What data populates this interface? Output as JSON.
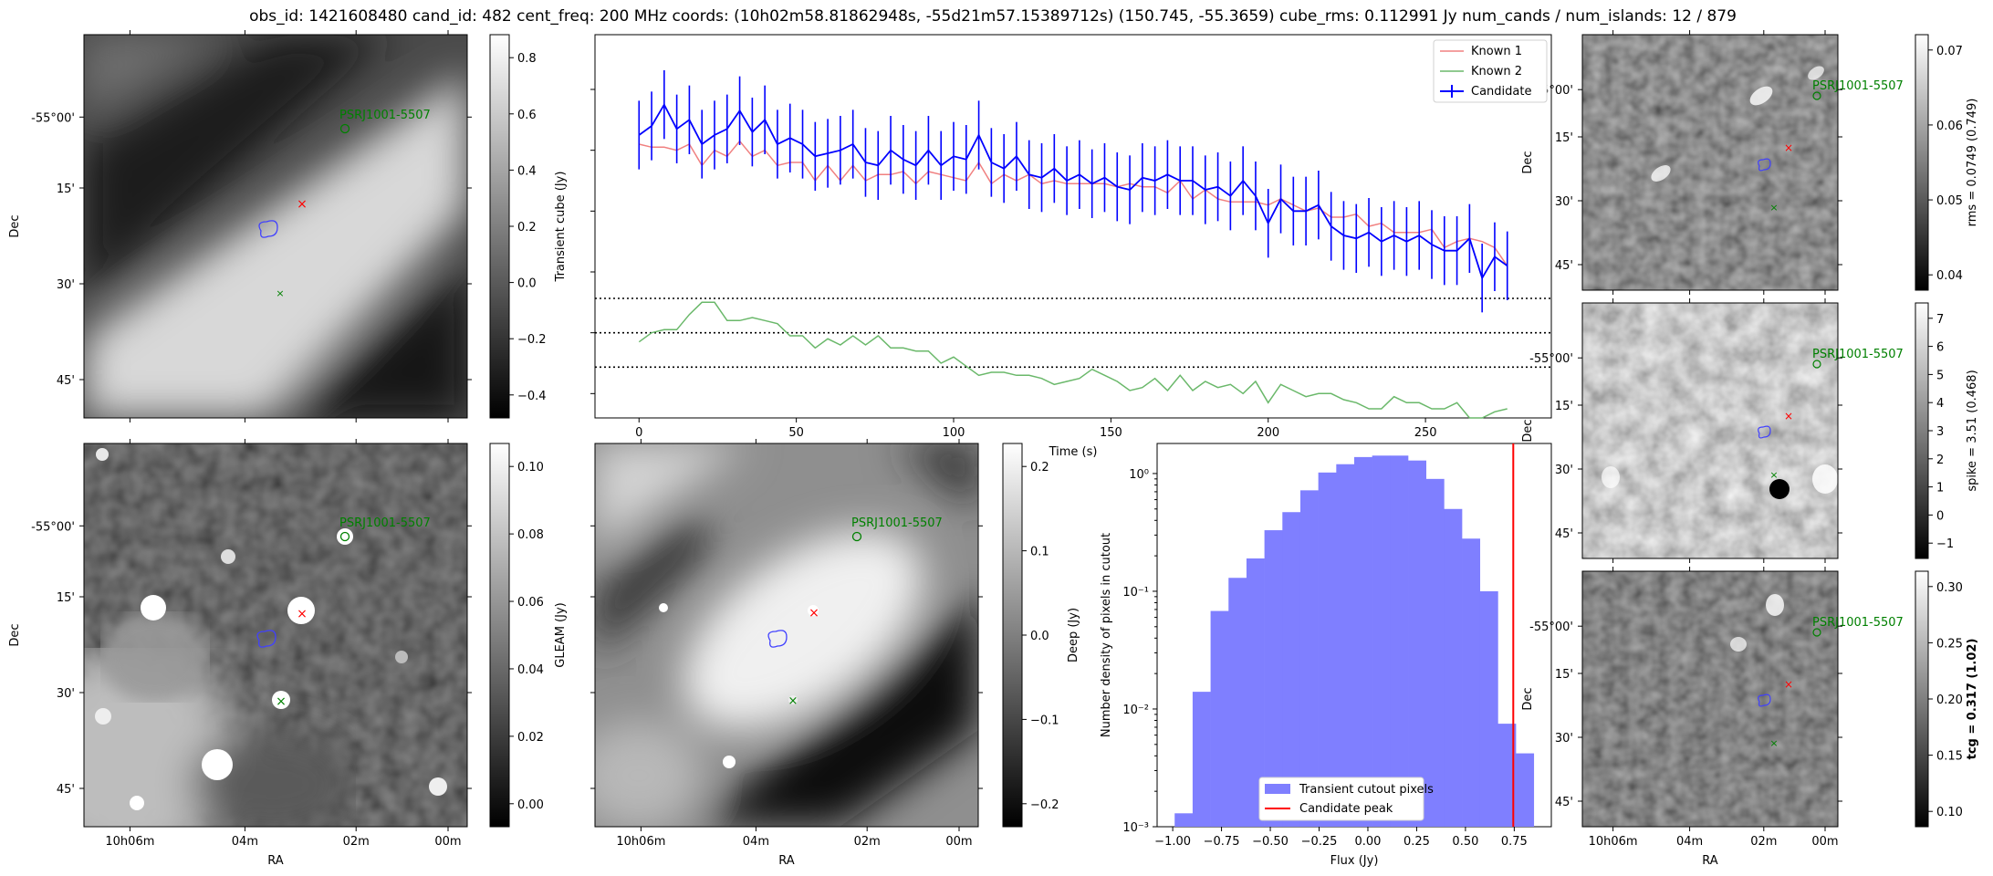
{
  "title": "obs_id: 1421608480 cand_id: 482 cent_freq: 200 MHz coords: (10h02m58.81862948s, -55d21m57.15389712s) (150.745, -55.3659) cube_rms: 0.112991 Jy num_cands / num_islands: 12 / 879",
  "colors": {
    "known1": "#f08080",
    "known2": "#6ab86a",
    "candidate": "#0000ff",
    "peak": "#ff0000",
    "hist": "#7f7fff",
    "psr": "#008000"
  },
  "images": [
    {
      "id": "transient",
      "cbar_label": "Transient cube (Jy)",
      "cbar_ticks": [
        "0.8",
        "0.6",
        "0.4",
        "0.2",
        "0.0",
        "−0.2",
        "−0.4"
      ],
      "dec_ticks": [
        "-55°00'",
        "15'",
        "30'",
        "45'"
      ],
      "ra_ticks": [],
      "ylabel": "Dec",
      "xlabel": "",
      "psr_label": "PSRJ1001-5507"
    },
    {
      "id": "gleam",
      "cbar_label": "GLEAM (Jy)",
      "cbar_ticks": [
        "0.10",
        "0.08",
        "0.06",
        "0.04",
        "0.02",
        "0.00"
      ],
      "dec_ticks": [
        "-55°00'",
        "15'",
        "30'",
        "45'"
      ],
      "ra_ticks": [
        "10h06m",
        "04m",
        "02m",
        "00m"
      ],
      "ylabel": "Dec",
      "xlabel": "RA",
      "psr_label": "PSRJ1001-5507"
    },
    {
      "id": "deep",
      "cbar_label": "Deep (Jy)",
      "cbar_ticks": [
        "0.2",
        "0.1",
        "0.0",
        "−0.1",
        "−0.2"
      ],
      "dec_ticks": [],
      "ra_ticks": [
        "10h06m",
        "04m",
        "02m",
        "00m"
      ],
      "ylabel": "",
      "xlabel": "RA",
      "psr_label": "PSRJ1001-5507"
    },
    {
      "id": "rms",
      "cbar_label": "rms = 0.0749 (0.749)",
      "cbar_ticks": [
        "0.07",
        "0.06",
        "0.05",
        "0.04"
      ],
      "dec_ticks": [
        "-55°00'",
        "15'",
        "30'",
        "45'"
      ],
      "ra_ticks": [],
      "ylabel": "Dec",
      "xlabel": "",
      "psr_label": "PSRJ1001-5507"
    },
    {
      "id": "spike",
      "cbar_label": "spike = 3.51 (0.468)",
      "cbar_ticks": [
        "7",
        "6",
        "5",
        "4",
        "3",
        "2",
        "1",
        "0",
        "−1"
      ],
      "dec_ticks": [
        "-55°00'",
        "15'",
        "30'",
        "45'"
      ],
      "ra_ticks": [],
      "ylabel": "Dec",
      "xlabel": "",
      "psr_label": "PSRJ1001-5507"
    },
    {
      "id": "tcg",
      "cbar_label": "tcg = 0.317 (1.02)",
      "cbar_ticks": [
        "0.30",
        "0.25",
        "0.20",
        "0.15",
        "0.10"
      ],
      "dec_ticks": [
        "-55°00'",
        "15'",
        "30'",
        "45'"
      ],
      "ra_ticks": [
        "10h06m",
        "04m",
        "02m",
        "00m"
      ],
      "ylabel": "Dec",
      "xlabel": "RA",
      "psr_label": "PSRJ1001-5507"
    }
  ],
  "chart_data": [
    {
      "type": "line",
      "title": "",
      "xlabel": "Time (s)",
      "ylabel": "",
      "xlim": [
        -14,
        290
      ],
      "ylim": [
        -0.28,
        0.98
      ],
      "xticks": [
        0,
        50,
        100,
        150,
        200,
        250
      ],
      "xtick_labels": [
        "0",
        "50",
        "100",
        "150",
        "200",
        "250"
      ],
      "hlines": [
        0.112991,
        0.0,
        -0.112991
      ],
      "legend": {
        "position": "top-right",
        "entries": [
          "Known 1",
          "Known 2",
          "Candidate"
        ]
      },
      "x": [
        0,
        4,
        8,
        12,
        16,
        20,
        24,
        28,
        32,
        36,
        40,
        44,
        48,
        52,
        56,
        60,
        64,
        68,
        72,
        76,
        80,
        84,
        88,
        92,
        96,
        100,
        104,
        108,
        112,
        116,
        120,
        124,
        128,
        132,
        136,
        140,
        144,
        148,
        152,
        156,
        160,
        164,
        168,
        172,
        176,
        180,
        184,
        188,
        192,
        196,
        200,
        204,
        208,
        212,
        216,
        220,
        224,
        228,
        232,
        236,
        240,
        244,
        248,
        252,
        256,
        260,
        264,
        268,
        272,
        276
      ],
      "series": [
        {
          "name": "Known 1",
          "values": [
            0.62,
            0.61,
            0.61,
            0.6,
            0.62,
            0.55,
            0.6,
            0.58,
            0.63,
            0.58,
            0.6,
            0.55,
            0.56,
            0.56,
            0.5,
            0.55,
            0.5,
            0.55,
            0.5,
            0.52,
            0.52,
            0.53,
            0.49,
            0.53,
            0.52,
            0.51,
            0.5,
            0.56,
            0.49,
            0.52,
            0.5,
            0.52,
            0.49,
            0.5,
            0.49,
            0.49,
            0.49,
            0.49,
            0.48,
            0.49,
            0.48,
            0.48,
            0.46,
            0.5,
            0.44,
            0.47,
            0.44,
            0.43,
            0.43,
            0.43,
            0.42,
            0.44,
            0.42,
            0.4,
            0.41,
            0.38,
            0.38,
            0.39,
            0.35,
            0.36,
            0.33,
            0.33,
            0.33,
            0.34,
            0.28,
            0.3,
            0.31,
            0.3,
            0.28,
            0.22
          ]
        },
        {
          "name": "Known 2",
          "values": [
            -0.03,
            0.0,
            0.01,
            0.01,
            0.06,
            0.1,
            0.1,
            0.04,
            0.04,
            0.05,
            0.04,
            0.03,
            -0.01,
            -0.01,
            -0.05,
            -0.02,
            -0.04,
            -0.01,
            -0.04,
            -0.01,
            -0.05,
            -0.05,
            -0.06,
            -0.06,
            -0.1,
            -0.08,
            -0.11,
            -0.14,
            -0.13,
            -0.13,
            -0.14,
            -0.14,
            -0.15,
            -0.17,
            -0.16,
            -0.15,
            -0.12,
            -0.14,
            -0.16,
            -0.19,
            -0.18,
            -0.15,
            -0.19,
            -0.14,
            -0.19,
            -0.16,
            -0.18,
            -0.17,
            -0.2,
            -0.16,
            -0.23,
            -0.17,
            -0.19,
            -0.21,
            -0.2,
            -0.2,
            -0.22,
            -0.23,
            -0.25,
            -0.25,
            -0.21,
            -0.23,
            -0.23,
            -0.25,
            -0.25,
            -0.23,
            -0.28,
            -0.28,
            -0.26,
            -0.25
          ]
        },
        {
          "name": "Candidate",
          "values": [
            0.65,
            0.68,
            0.75,
            0.67,
            0.7,
            0.62,
            0.65,
            0.67,
            0.73,
            0.66,
            0.7,
            0.62,
            0.64,
            0.62,
            0.58,
            0.59,
            0.6,
            0.62,
            0.56,
            0.55,
            0.6,
            0.57,
            0.55,
            0.6,
            0.55,
            0.58,
            0.57,
            0.65,
            0.56,
            0.54,
            0.58,
            0.52,
            0.51,
            0.54,
            0.5,
            0.52,
            0.49,
            0.51,
            0.48,
            0.47,
            0.51,
            0.5,
            0.52,
            0.5,
            0.5,
            0.47,
            0.48,
            0.45,
            0.5,
            0.45,
            0.36,
            0.44,
            0.4,
            0.4,
            0.42,
            0.35,
            0.32,
            0.31,
            0.33,
            0.3,
            0.32,
            0.3,
            0.32,
            0.29,
            0.27,
            0.27,
            0.31,
            0.18,
            0.25,
            0.22
          ],
          "error": 0.112991
        }
      ]
    },
    {
      "type": "bar",
      "title": "",
      "xlabel": "Flux (Jy)",
      "ylabel": "Number density of pixels in cutout",
      "yscale": "log",
      "xlim": [
        -1.08,
        0.94
      ],
      "ylim": [
        0.001,
        1.8
      ],
      "xticks": [
        -1.0,
        -0.75,
        -0.5,
        -0.25,
        0.0,
        0.25,
        0.5,
        0.75
      ],
      "xtick_labels": [
        "−1.00",
        "−0.75",
        "−0.50",
        "−0.25",
        "0.00",
        "0.25",
        "0.50",
        "0.75"
      ],
      "yticks": [
        0.001,
        0.01,
        0.1,
        1.0
      ],
      "ytick_labels": [
        "10⁻³",
        "10⁻²",
        "10⁻¹",
        "10⁰"
      ],
      "bin_edges": [
        -0.99,
        -0.898,
        -0.806,
        -0.714,
        -0.622,
        -0.53,
        -0.438,
        -0.346,
        -0.254,
        -0.162,
        -0.07,
        0.022,
        0.114,
        0.206,
        0.298,
        0.39,
        0.482,
        0.574,
        0.666,
        0.758,
        0.85
      ],
      "values": [
        0.0013,
        0.014,
        0.068,
        0.13,
        0.19,
        0.33,
        0.47,
        0.72,
        1.02,
        1.2,
        1.38,
        1.42,
        1.42,
        1.29,
        0.9,
        0.5,
        0.28,
        0.1,
        0.0075,
        0.0042
      ],
      "candidate_peak": 0.745,
      "legend": {
        "position": "bottom-center",
        "entries": [
          "Transient cutout pixels",
          "Candidate peak"
        ]
      }
    }
  ]
}
